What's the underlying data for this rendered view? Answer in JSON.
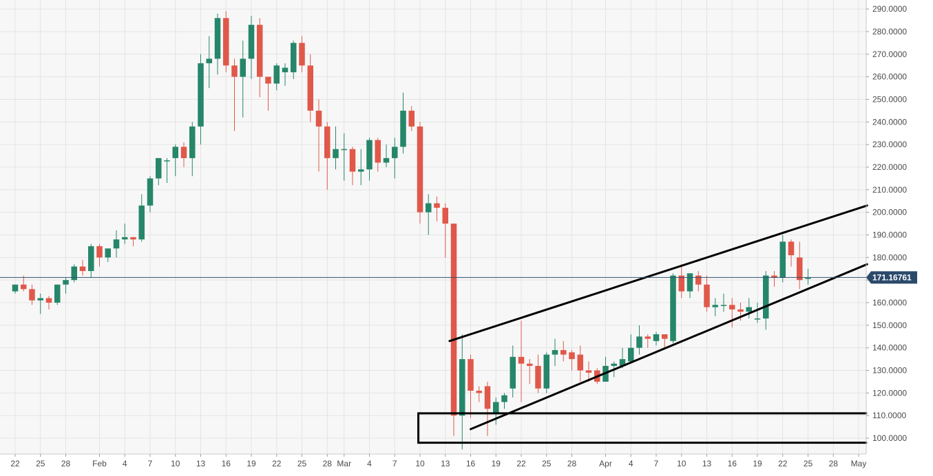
{
  "chart_data": {
    "type": "candlestick",
    "ylim": [
      93,
      294
    ],
    "grid": true,
    "y_ticks": [
      100,
      110,
      120,
      130,
      140,
      150,
      160,
      170,
      180,
      190,
      200,
      210,
      220,
      230,
      240,
      250,
      260,
      270,
      280,
      290
    ],
    "y_tick_labels": [
      "100.0000",
      "110.0000",
      "120.0000",
      "130.0000",
      "140.0000",
      "150.0000",
      "160.0000",
      "170.0000",
      "180.0000",
      "190.0000",
      "200.0000",
      "210.0000",
      "220.0000",
      "230.0000",
      "240.0000",
      "250.0000",
      "260.0000",
      "270.0000",
      "280.0000",
      "290.0000"
    ],
    "x_ticks": [
      {
        "label": "22",
        "idx": 0
      },
      {
        "label": "25",
        "idx": 3
      },
      {
        "label": "28",
        "idx": 6
      },
      {
        "label": "Feb",
        "idx": 10
      },
      {
        "label": "4",
        "idx": 13
      },
      {
        "label": "7",
        "idx": 16
      },
      {
        "label": "10",
        "idx": 19
      },
      {
        "label": "13",
        "idx": 22
      },
      {
        "label": "16",
        "idx": 25
      },
      {
        "label": "19",
        "idx": 28
      },
      {
        "label": "22",
        "idx": 31
      },
      {
        "label": "25",
        "idx": 34
      },
      {
        "label": "28",
        "idx": 37
      },
      {
        "label": "Mar",
        "idx": 39
      },
      {
        "label": "4",
        "idx": 42
      },
      {
        "label": "7",
        "idx": 45
      },
      {
        "label": "10",
        "idx": 48
      },
      {
        "label": "13",
        "idx": 51
      },
      {
        "label": "16",
        "idx": 54
      },
      {
        "label": "19",
        "idx": 57
      },
      {
        "label": "22",
        "idx": 60
      },
      {
        "label": "25",
        "idx": 63
      },
      {
        "label": "28",
        "idx": 66
      },
      {
        "label": "Apr",
        "idx": 70
      },
      {
        "label": "4",
        "idx": 73
      },
      {
        "label": "7",
        "idx": 76
      },
      {
        "label": "10",
        "idx": 79
      },
      {
        "label": "13",
        "idx": 82
      },
      {
        "label": "16",
        "idx": 85
      },
      {
        "label": "19",
        "idx": 88
      },
      {
        "label": "22",
        "idx": 91
      },
      {
        "label": "25",
        "idx": 94
      },
      {
        "label": "28",
        "idx": 97
      },
      {
        "label": "May",
        "idx": 100
      }
    ],
    "last_price": 171.16761,
    "last_price_label": "171.16761",
    "candles": [
      [
        165,
        168,
        164,
        168
      ],
      [
        168,
        172,
        165,
        166
      ],
      [
        166,
        168,
        159,
        161
      ],
      [
        161,
        164,
        155,
        162
      ],
      [
        162,
        163,
        157,
        160
      ],
      [
        160,
        168,
        159,
        168
      ],
      [
        168,
        171,
        164,
        170
      ],
      [
        170,
        177,
        169,
        176
      ],
      [
        176,
        179,
        172,
        174
      ],
      [
        174,
        186,
        171,
        185
      ],
      [
        185,
        186,
        176,
        180
      ],
      [
        180,
        183,
        178,
        184
      ],
      [
        184,
        192,
        180,
        188
      ],
      [
        188,
        195,
        186,
        189
      ],
      [
        189,
        189,
        185,
        188
      ],
      [
        188,
        208,
        187,
        203
      ],
      [
        203,
        216,
        200,
        215
      ],
      [
        215,
        224,
        212,
        224
      ],
      [
        223,
        224,
        213,
        223
      ],
      [
        224,
        230,
        216,
        229
      ],
      [
        229,
        231,
        220,
        224
      ],
      [
        224,
        240,
        216,
        238
      ],
      [
        238,
        270,
        230,
        266
      ],
      [
        266,
        278,
        255,
        268
      ],
      [
        268,
        288,
        261,
        286
      ],
      [
        286,
        289,
        262,
        265
      ],
      [
        265,
        268,
        236,
        260
      ],
      [
        260,
        276,
        242,
        268
      ],
      [
        268,
        287,
        259,
        283
      ],
      [
        283,
        286,
        251,
        260
      ],
      [
        260,
        260,
        245,
        257
      ],
      [
        257,
        266,
        254,
        265
      ],
      [
        262,
        266,
        256,
        264
      ],
      [
        262,
        276,
        259,
        275
      ],
      [
        275,
        278,
        262,
        265
      ],
      [
        265,
        270,
        240,
        245
      ],
      [
        245,
        250,
        218,
        238
      ],
      [
        238,
        240,
        210,
        224
      ],
      [
        224,
        238,
        219,
        228
      ],
      [
        228,
        235,
        214,
        228
      ],
      [
        228,
        229,
        212,
        218
      ],
      [
        218,
        228,
        212,
        219
      ],
      [
        219,
        233,
        214,
        232
      ],
      [
        232,
        233,
        218,
        222
      ],
      [
        222,
        230,
        220,
        224
      ],
      [
        224,
        233,
        215,
        229
      ],
      [
        229,
        253,
        226,
        245
      ],
      [
        245,
        247,
        236,
        238
      ],
      [
        238,
        240,
        195,
        200
      ],
      [
        200,
        208,
        190,
        204
      ],
      [
        204,
        207,
        196,
        202
      ],
      [
        202,
        204,
        180,
        195
      ],
      [
        195,
        195,
        101,
        110
      ],
      [
        110,
        146,
        95,
        135
      ],
      [
        135,
        137,
        109,
        121
      ],
      [
        121,
        123,
        116,
        120
      ],
      [
        123,
        125,
        101,
        113
      ],
      [
        111,
        118,
        106,
        116
      ],
      [
        116,
        120,
        113,
        119
      ],
      [
        122,
        141,
        118,
        136
      ],
      [
        136,
        152,
        116,
        133
      ],
      [
        133,
        135,
        124,
        132
      ],
      [
        132,
        137,
        120,
        122
      ],
      [
        122,
        138,
        120,
        137
      ],
      [
        137,
        144,
        132,
        139
      ],
      [
        139,
        143,
        134,
        137
      ],
      [
        138,
        139,
        130,
        135
      ],
      [
        137,
        141,
        125,
        130
      ],
      [
        130,
        134,
        125,
        129
      ],
      [
        130,
        131,
        124,
        125
      ],
      [
        125,
        136,
        125,
        132
      ],
      [
        132,
        134,
        127,
        133
      ],
      [
        132,
        140,
        131,
        135
      ],
      [
        134,
        146,
        133,
        140
      ],
      [
        140,
        150,
        137,
        145
      ],
      [
        145,
        146,
        140,
        144
      ],
      [
        143,
        147,
        141,
        146
      ],
      [
        146,
        146,
        140,
        144
      ],
      [
        143,
        173,
        142,
        172
      ],
      [
        172,
        177,
        162,
        165
      ],
      [
        165,
        173,
        162,
        173
      ],
      [
        172,
        174,
        165,
        168
      ],
      [
        168,
        172,
        156,
        158
      ],
      [
        158,
        162,
        154,
        159
      ],
      [
        159,
        164,
        156,
        159
      ],
      [
        159,
        162,
        149,
        157
      ],
      [
        157,
        160,
        152,
        156
      ],
      [
        156,
        162,
        153,
        158
      ],
      [
        153,
        160,
        151,
        153
      ],
      [
        153,
        174,
        148,
        172
      ],
      [
        172,
        174,
        167,
        171
      ],
      [
        171,
        190,
        169,
        187
      ],
      [
        187,
        188,
        176,
        181
      ],
      [
        180,
        187,
        166,
        170
      ],
      [
        171,
        175,
        168,
        171
      ]
    ],
    "annotations": {
      "upper_trend": [
        [
          51.5,
          143
        ],
        [
          101,
          203
        ]
      ],
      "lower_trend": [
        [
          54,
          104
        ],
        [
          101,
          177
        ]
      ],
      "support_box": {
        "x_start": 47.8,
        "x_end": 101,
        "y_top": 111,
        "y_bottom": 98
      }
    },
    "colors": {
      "up": "#26866a",
      "down": "#e0584a",
      "grid": "#e4e4e4",
      "price_line": "#2f4f6f",
      "price_tag": "#2b4a6b",
      "annotation": "#000000",
      "plot_bg": "#f7f7f7"
    }
  }
}
